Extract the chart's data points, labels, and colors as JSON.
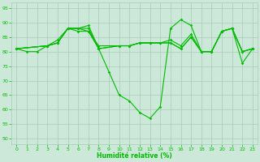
{
  "xlabel": "Humidité relative (%)",
  "xlim": [
    -0.5,
    23.5
  ],
  "ylim": [
    48,
    97
  ],
  "yticks": [
    50,
    55,
    60,
    65,
    70,
    75,
    80,
    85,
    90,
    95
  ],
  "xticks": [
    0,
    1,
    2,
    3,
    4,
    5,
    6,
    7,
    8,
    9,
    10,
    11,
    12,
    13,
    14,
    15,
    16,
    17,
    18,
    19,
    20,
    21,
    22,
    23
  ],
  "bg_color": "#cce8d8",
  "grid_color": "#aaccbb",
  "line_color": "#00bb00",
  "line1": {
    "x": [
      0,
      1,
      2,
      3,
      4,
      5,
      6,
      7,
      8,
      9,
      10,
      11,
      12,
      13,
      14,
      15,
      16,
      17,
      18,
      19,
      20,
      21,
      22,
      23
    ],
    "y": [
      81,
      80,
      80,
      82,
      83,
      88,
      88,
      89,
      81,
      73,
      65,
      63,
      59,
      57,
      61,
      88,
      91,
      89,
      80,
      80,
      87,
      88,
      76,
      81
    ]
  },
  "line2": {
    "x": [
      0,
      3,
      4,
      5,
      6,
      7,
      8,
      10,
      11,
      12,
      13,
      14,
      15,
      16,
      17,
      18,
      19,
      20,
      21,
      22,
      23
    ],
    "y": [
      81,
      82,
      84,
      88,
      87,
      87,
      82,
      82,
      82,
      83,
      83,
      83,
      84,
      82,
      86,
      80,
      80,
      87,
      88,
      80,
      81
    ]
  },
  "line3": {
    "x": [
      0,
      3,
      4,
      5,
      6,
      7,
      8,
      10,
      11,
      12,
      13,
      14,
      15,
      16,
      17,
      18,
      19,
      20,
      21,
      22,
      23
    ],
    "y": [
      81,
      82,
      83,
      88,
      88,
      88,
      81,
      82,
      82,
      83,
      83,
      83,
      83,
      81,
      85,
      80,
      80,
      87,
      88,
      80,
      81
    ]
  },
  "line4": {
    "x": [
      0,
      3,
      4,
      5,
      6,
      7,
      8,
      10,
      11,
      12,
      13,
      14,
      15,
      16,
      17,
      18,
      19,
      20,
      21,
      22,
      23
    ],
    "y": [
      81,
      82,
      83,
      88,
      88,
      87,
      81,
      82,
      82,
      83,
      83,
      83,
      83,
      81,
      85,
      80,
      80,
      87,
      88,
      80,
      81
    ]
  }
}
